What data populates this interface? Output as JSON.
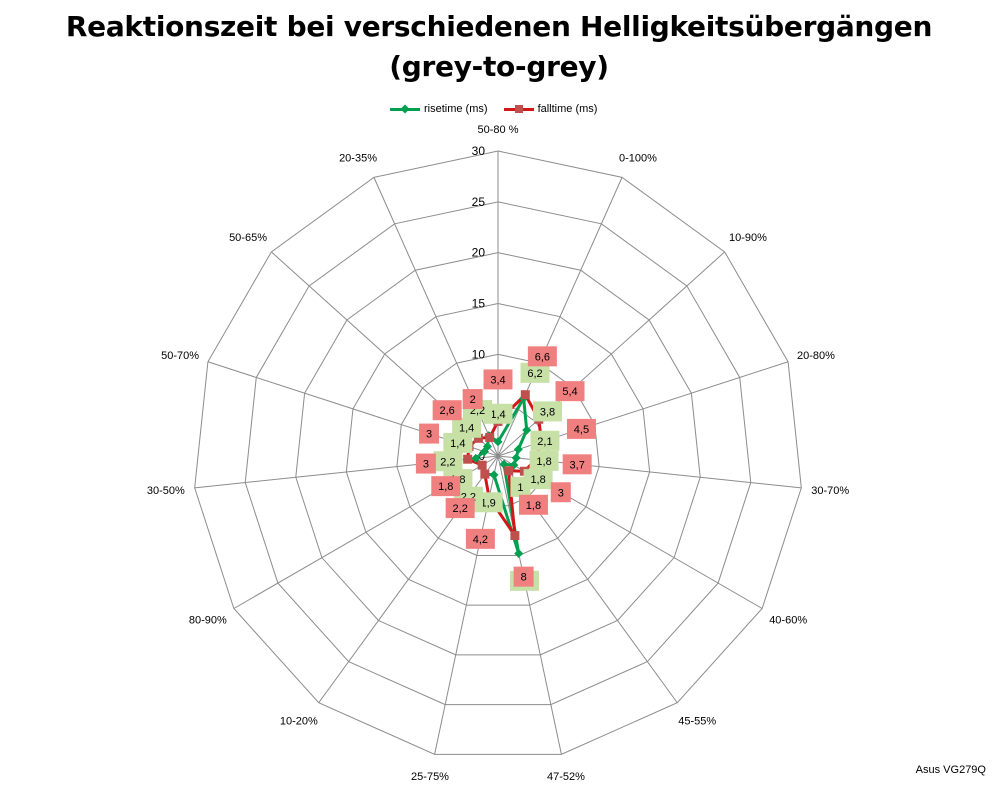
{
  "chart_data": {
    "type": "radar",
    "title": "Reaktionszeit bei verschiedenen Helligkeitsübergängen",
    "subtitle": "(grey-to-grey)",
    "categories": [
      "50-80 %",
      "0-100%",
      "10-90%",
      "20-80%",
      "30-70%",
      "40-60%",
      "45-55%",
      "47-52%",
      "25-75%",
      "10-20%",
      "80-90%",
      "30-50%",
      "50-70%",
      "50-65%",
      "20-35%"
    ],
    "series": [
      {
        "name": "risetime (ms)",
        "color": "#00a050",
        "marker": "diamond",
        "label_bg": "#c6e0a6",
        "values": [
          1.4,
          6.2,
          3.8,
          2.1,
          1.8,
          1.8,
          1,
          9.8,
          1.9,
          2.2,
          1.8,
          2.2,
          1.4,
          1.4,
          2.2
        ],
        "labels": [
          "1,4",
          "6,2",
          "3,8",
          "2,1",
          "1,8",
          "1,8",
          "1",
          "9,8",
          "1,9",
          "2,2",
          "1,8",
          "2,2",
          "1,4",
          "1,4",
          "2,2"
        ]
      },
      {
        "name": "falltime (ms)",
        "color": "#d01818",
        "marker": "square",
        "marker_color": "#c0504d",
        "label_bg": "#f08080",
        "values": [
          3.4,
          6.6,
          5.4,
          4.5,
          3.7,
          3,
          1.8,
          8,
          4.2,
          2.2,
          1.8,
          3,
          3,
          2.6,
          2
        ],
        "labels": [
          "3,4",
          "6,6",
          "5,4",
          "4,5",
          "3,7",
          "3",
          "1,8",
          "8",
          "4,2",
          "2,2",
          "1,8",
          "3",
          "3",
          "2,6",
          "2"
        ]
      }
    ],
    "r_ticks": [
      0,
      5,
      10,
      15,
      20,
      25,
      30
    ],
    "r_tick_labels": [
      "0",
      "5",
      "10",
      "15",
      "20",
      "25",
      "30"
    ],
    "rlim": [
      0,
      30
    ],
    "grid": true,
    "legend": "top-center"
  },
  "watermark": "Asus VG279Q"
}
